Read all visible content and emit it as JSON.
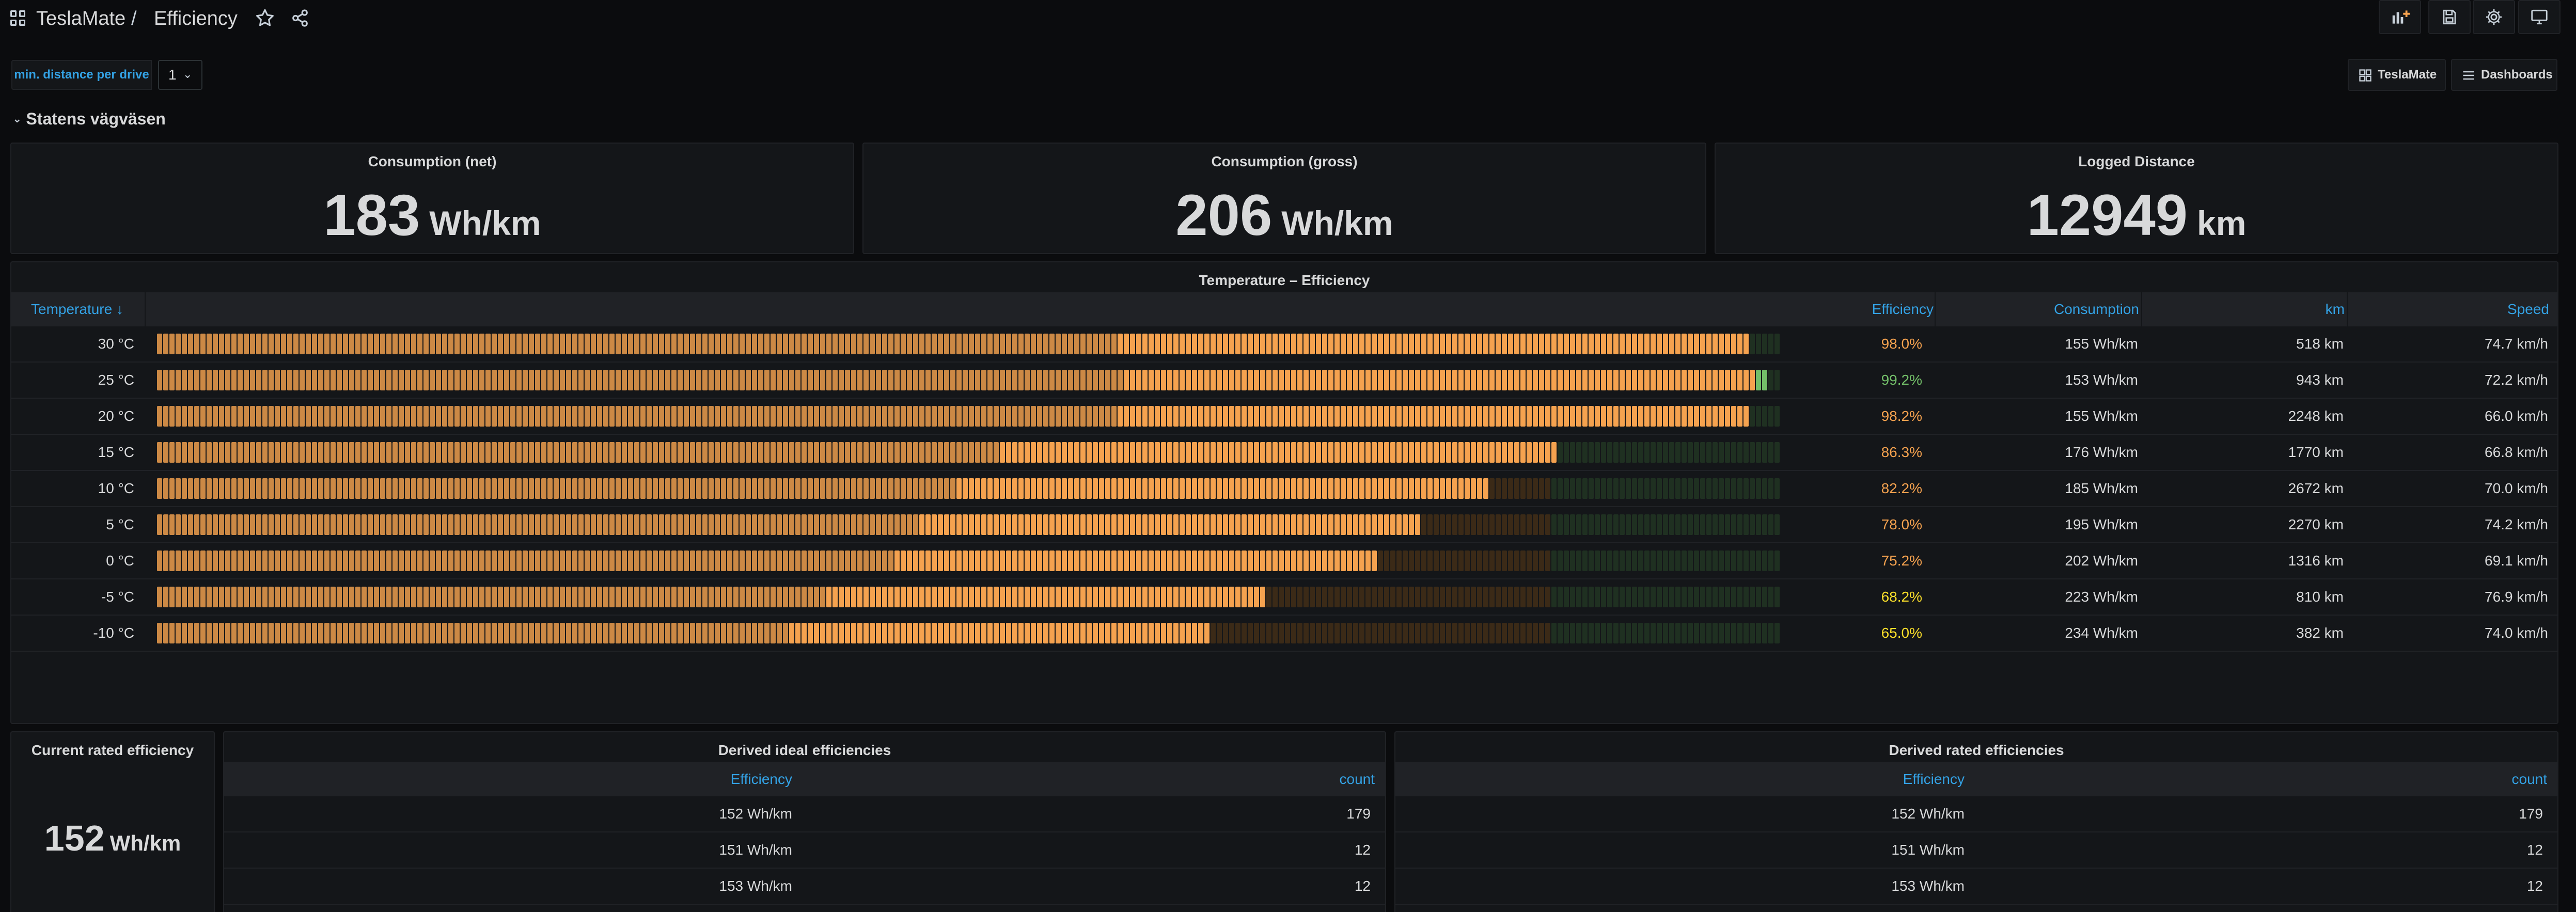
{
  "breadcrumb": {
    "folder": "TeslaMate",
    "separator": "/",
    "dashboard": "Efficiency"
  },
  "variables": {
    "min_distance_label": "min. distance per drive",
    "min_distance_value": "1"
  },
  "links": {
    "teslamate": "TeslaMate",
    "dashboards": "Dashboards"
  },
  "row": {
    "title": "Statens vägväsen"
  },
  "stats": [
    {
      "title": "Consumption (net)",
      "value": "183",
      "unit": "Wh/km"
    },
    {
      "title": "Consumption (gross)",
      "value": "206",
      "unit": "Wh/km"
    },
    {
      "title": "Logged Distance",
      "value": "12949",
      "unit": "km"
    }
  ],
  "temp_table": {
    "title": "Temperature – Efficiency",
    "columns": {
      "temperature": "Temperature ↓",
      "efficiency": "Efficiency",
      "consumption": "Consumption",
      "km": "km",
      "speed": "Speed"
    },
    "rows": [
      {
        "temperature": "30 °C",
        "efficiency": "98.0%",
        "efficiency_value": 0.98,
        "consumption": "155 Wh/km",
        "km": "518 km",
        "speed": "74.7 km/h"
      },
      {
        "temperature": "25 °C",
        "efficiency": "99.2%",
        "efficiency_value": 0.992,
        "consumption": "153 Wh/km",
        "km": "943 km",
        "speed": "72.2 km/h"
      },
      {
        "temperature": "20 °C",
        "efficiency": "98.2%",
        "efficiency_value": 0.982,
        "consumption": "155 Wh/km",
        "km": "2248 km",
        "speed": "66.0 km/h"
      },
      {
        "temperature": "15 °C",
        "efficiency": "86.3%",
        "efficiency_value": 0.863,
        "consumption": "176 Wh/km",
        "km": "1770 km",
        "speed": "66.8 km/h"
      },
      {
        "temperature": "10 °C",
        "efficiency": "82.2%",
        "efficiency_value": 0.822,
        "consumption": "185 Wh/km",
        "km": "2672 km",
        "speed": "70.0 km/h"
      },
      {
        "temperature": "5 °C",
        "efficiency": "78.0%",
        "efficiency_value": 0.78,
        "consumption": "195 Wh/km",
        "km": "2270 km",
        "speed": "74.2 km/h"
      },
      {
        "temperature": "0 °C",
        "efficiency": "75.2%",
        "efficiency_value": 0.752,
        "consumption": "202 Wh/km",
        "km": "1316 km",
        "speed": "69.1 km/h"
      },
      {
        "temperature": "-5 °C",
        "efficiency": "68.2%",
        "efficiency_value": 0.682,
        "consumption": "223 Wh/km",
        "km": "810 km",
        "speed": "76.9 km/h"
      },
      {
        "temperature": "-10 °C",
        "efficiency": "65.0%",
        "efficiency_value": 0.65,
        "consumption": "234 Wh/km",
        "km": "382 km",
        "speed": "74.0 km/h"
      }
    ]
  },
  "gauge_thresholds": {
    "green_from": 0.86
  },
  "colors": {
    "orange": "#f5a24f",
    "orange_dim": "#3b2a17",
    "green": "#73bf69",
    "green_dim": "#1f3021",
    "yellow_text": "#fade2a",
    "blue": "#33a2e5"
  },
  "current_rated": {
    "title": "Current rated efficiency",
    "value": "152",
    "unit": "Wh/km"
  },
  "ideal_table": {
    "title": "Derived ideal efficiencies",
    "columns": {
      "efficiency": "Efficiency",
      "count": "count"
    },
    "rows": [
      {
        "efficiency": "152 Wh/km",
        "count": "179"
      },
      {
        "efficiency": "151 Wh/km",
        "count": "12"
      },
      {
        "efficiency": "153 Wh/km",
        "count": "12"
      }
    ]
  },
  "rated_table": {
    "title": "Derived rated efficiencies",
    "columns": {
      "efficiency": "Efficiency",
      "count": "count"
    },
    "rows": [
      {
        "efficiency": "152 Wh/km",
        "count": "179"
      },
      {
        "efficiency": "151 Wh/km",
        "count": "12"
      },
      {
        "efficiency": "153 Wh/km",
        "count": "12"
      }
    ]
  }
}
